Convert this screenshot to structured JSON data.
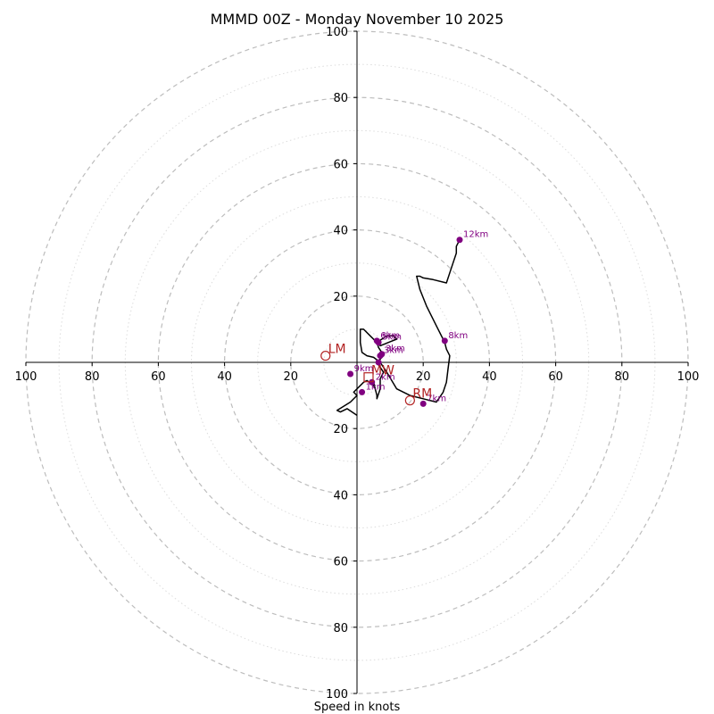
{
  "chart_data": {
    "type": "hodograph",
    "title": "MMMD 00Z - Monday November 10 2025",
    "xlabel": "Speed in knots",
    "range": [
      -100,
      100
    ],
    "major_rings": [
      20,
      40,
      60,
      80,
      100
    ],
    "minor_rings": [
      10,
      30,
      50,
      70,
      90
    ],
    "ticks": [
      -100,
      -80,
      -60,
      -40,
      -20,
      20,
      40,
      60,
      80,
      100
    ],
    "tick_labels": {
      "-100": "100",
      "-80": "80",
      "-60": "60",
      "-40": "40",
      "-20": "20",
      "20": "20",
      "40": "40",
      "60": "60",
      "80": "80",
      "100": "100"
    },
    "wind_profile": [
      [
        0,
        -16
      ],
      [
        -3,
        -14
      ],
      [
        -5,
        -15
      ],
      [
        -6,
        -14.5
      ],
      [
        -2,
        -12
      ],
      [
        0,
        -10
      ],
      [
        -1,
        -9
      ],
      [
        2,
        -6
      ],
      [
        3,
        -5.5
      ],
      [
        5,
        -7
      ],
      [
        5,
        -6
      ],
      [
        5.5,
        -8
      ],
      [
        6,
        -10
      ],
      [
        6,
        -11
      ],
      [
        7,
        -8
      ],
      [
        7,
        -5
      ],
      [
        8,
        -3
      ],
      [
        7,
        -1.5
      ],
      [
        6,
        0
      ],
      [
        7,
        1
      ],
      [
        8,
        2
      ],
      [
        7.5,
        3
      ],
      [
        6.5,
        4.5
      ],
      [
        6,
        6
      ],
      [
        9,
        8
      ],
      [
        11,
        8
      ],
      [
        12,
        7
      ],
      [
        9.5,
        6
      ],
      [
        7,
        5
      ],
      [
        6,
        6
      ],
      [
        4,
        8
      ],
      [
        2,
        10
      ],
      [
        1,
        10
      ],
      [
        1,
        8
      ],
      [
        1,
        6
      ],
      [
        1.5,
        3
      ],
      [
        3,
        2
      ],
      [
        5,
        1.5
      ],
      [
        7,
        0
      ],
      [
        9,
        -3
      ],
      [
        12,
        -8
      ],
      [
        16,
        -10
      ],
      [
        20,
        -11
      ],
      [
        24,
        -12
      ],
      [
        26,
        -9
      ],
      [
        27,
        -6
      ],
      [
        27.5,
        -2
      ],
      [
        28,
        2
      ],
      [
        27,
        4
      ],
      [
        26.5,
        6
      ],
      [
        24,
        11
      ],
      [
        21,
        17
      ],
      [
        19,
        22
      ],
      [
        18,
        26
      ],
      [
        19,
        26
      ],
      [
        20,
        25.5
      ],
      [
        23,
        25
      ],
      [
        27,
        24
      ],
      [
        28,
        27
      ],
      [
        29,
        30
      ],
      [
        30,
        33
      ],
      [
        30,
        35
      ],
      [
        31,
        37
      ]
    ],
    "height_points": [
      {
        "label": "1km",
        "u": 1.5,
        "v": -9
      },
      {
        "label": "2km",
        "u": 4.5,
        "v": -6
      },
      {
        "label": "3km",
        "u": 7,
        "v": 2
      },
      {
        "label": "3km",
        "u": 7.5,
        "v": 2.5
      },
      {
        "label": "5km",
        "u": 6.5,
        "v": 6
      },
      {
        "label": "6km",
        "u": 6,
        "v": 6.5
      },
      {
        "label": "7km",
        "u": 20,
        "v": -12.5
      },
      {
        "label": "8km",
        "u": 26.5,
        "v": 6.5
      },
      {
        "label": "9km",
        "u": -2,
        "v": -3.5
      },
      {
        "label": "12km",
        "u": 31,
        "v": 37
      },
      {
        "label": "",
        "u": 6.5,
        "v": 0
      }
    ],
    "storm_motion": [
      {
        "label": "LM",
        "u": -9.5,
        "v": 2
      },
      {
        "label": "RM",
        "u": 16,
        "v": -11.5
      },
      {
        "label": "MW",
        "u": 3.5,
        "v": -4.5
      }
    ],
    "colors": {
      "profile": "#000000",
      "height_marker": "#800080",
      "storm_motion": "#b22222",
      "rings": "#bdbdbd"
    }
  }
}
